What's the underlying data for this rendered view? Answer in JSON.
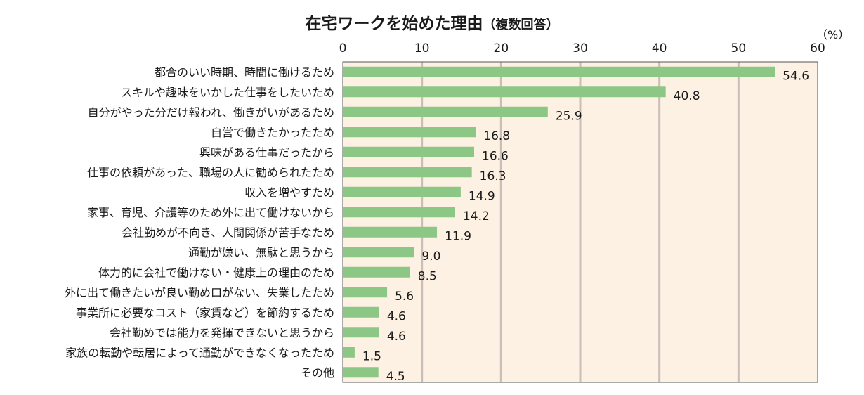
{
  "chart_data": {
    "type": "bar",
    "orientation": "horizontal",
    "title": "在宅ワークを始めた理由",
    "subtitle": "（複数回答）",
    "unit": "（%）",
    "xlim": [
      0,
      60
    ],
    "ticks": [
      "0",
      "10",
      "20",
      "30",
      "40",
      "50",
      "60"
    ],
    "grid": true,
    "colors": {
      "bar": "#8cc785",
      "plot_bg": "#fdf1e3",
      "grid": "#c9beb8",
      "frame": "#555555"
    },
    "categories": [
      "都合のいい時期、時間に働けるため",
      "スキルや趣味をいかした仕事をしたいため",
      "自分がやった分だけ報われ、働きがいがあるため",
      "自営で働きたかったため",
      "興味がある仕事だったから",
      "仕事の依頼があった、職場の人に勧められたため",
      "収入を増やすため",
      "家事、育児、介護等のため外に出て働けないから",
      "会社勤めが不向き、人間関係が苦手なため",
      "通勤が嫌い、無駄と思うから",
      "体力的に会社で働けない・健康上の理由のため",
      "外に出て働きたいが良い勤め口がない、失業したため",
      "事業所に必要なコスト（家賃など）を節約するため",
      "会社勤めでは能力を発揮できないと思うから",
      "家族の転勤や転居によって通勤ができなくなったため",
      "その他"
    ],
    "values": [
      54.6,
      40.8,
      25.9,
      16.8,
      16.6,
      16.3,
      14.9,
      14.2,
      11.9,
      9.0,
      8.5,
      5.6,
      4.6,
      4.6,
      1.5,
      4.5
    ],
    "value_labels": [
      "54.6",
      "40.8",
      "25.9",
      "16.8",
      "16.6",
      "16.3",
      "14.9",
      "14.2",
      "11.9",
      "9.0",
      "8.5",
      "5.6",
      "4.6",
      "4.6",
      "1.5",
      "4.5"
    ]
  }
}
